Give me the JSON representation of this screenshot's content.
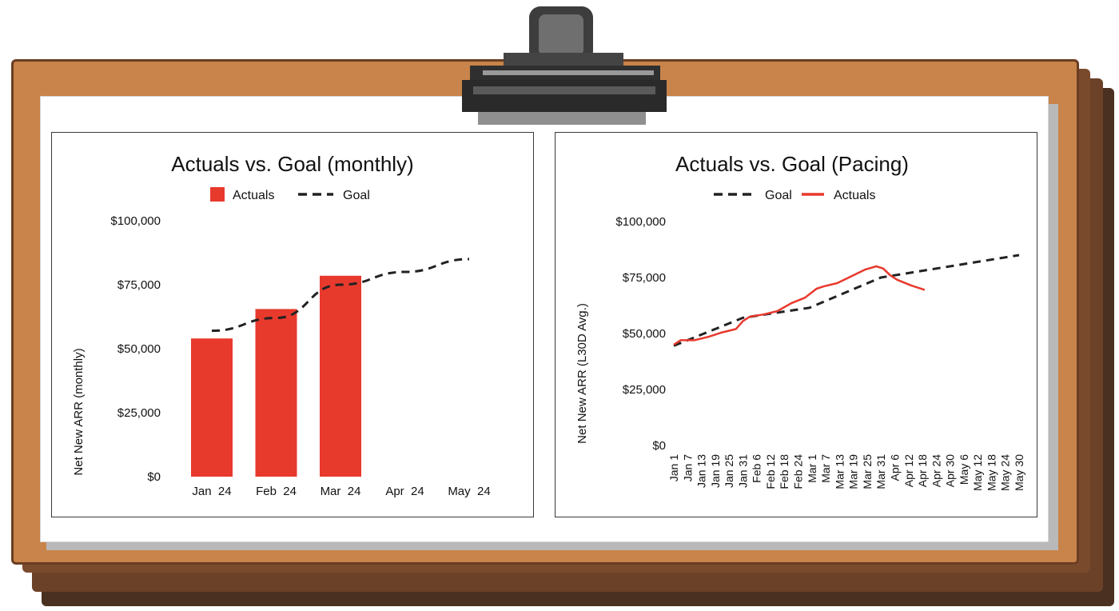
{
  "colors": {
    "actuals": "#e8392d",
    "goal": "#222222",
    "board": "#c8844a",
    "clip": "#4a4a4a"
  },
  "charts": {
    "left": {
      "title": "Actuals vs. Goal (monthly)",
      "ylabel": "Net New ARR (monthly)",
      "legend": [
        "Actuals",
        "Goal"
      ],
      "yticks": [
        "$100,000",
        "$75,000",
        "$50,000",
        "$25,000",
        "$0"
      ]
    },
    "right": {
      "title": "Actuals vs. Goal (Pacing)",
      "ylabel": "Net New ARR (L30D Avg.)",
      "legend": [
        "Goal",
        "Actuals"
      ],
      "yticks": [
        "$100,000",
        "$75,000",
        "$50,000",
        "$25,000",
        "$0"
      ]
    }
  },
  "chart_data": [
    {
      "type": "bar",
      "title": "Actuals vs. Goal (monthly)",
      "xlabel": "",
      "ylabel": "Net New ARR (monthly)",
      "ylim": [
        0,
        100000
      ],
      "categories": [
        "Jan 24",
        "Feb 24",
        "Mar 24",
        "Apr 24",
        "May 24"
      ],
      "series": [
        {
          "name": "Actuals",
          "type": "bar",
          "values": [
            54000,
            65500,
            78500,
            null,
            null
          ]
        },
        {
          "name": "Goal",
          "type": "line",
          "style": "dashed",
          "values": [
            57000,
            62000,
            75000,
            80000,
            85000
          ]
        }
      ],
      "legend": "top-center",
      "grid": false
    },
    {
      "type": "line",
      "title": "Actuals vs. Goal (Pacing)",
      "xlabel": "",
      "ylabel": "Net New ARR (L30D Avg.)",
      "ylim": [
        0,
        100000
      ],
      "xlim": [
        "Jan 1",
        "May 30"
      ],
      "x_ticks": [
        "Jan 1",
        "Jan 7",
        "Jan 13",
        "Jan 19",
        "Jan 25",
        "Jan 31",
        "Feb 6",
        "Feb 12",
        "Feb 18",
        "Feb 24",
        "Mar 1",
        "Mar 7",
        "Mar 13",
        "Mar 19",
        "Mar 25",
        "Mar 31",
        "Apr 6",
        "Apr 12",
        "Apr 18",
        "Apr 24",
        "Apr 30",
        "May 6",
        "May 12",
        "May 18",
        "May 24",
        "May 30"
      ],
      "series": [
        {
          "name": "Goal",
          "style": "dashed",
          "x": [
            "Jan 1",
            "Jan 31",
            "Feb 29",
            "Mar 31",
            "May 30"
          ],
          "values": [
            44500,
            57000,
            61500,
            75000,
            85000
          ]
        },
        {
          "name": "Actuals",
          "x": [
            "Jan 1",
            "Jan 4",
            "Jan 10",
            "Jan 16",
            "Jan 22",
            "Jan 28",
            "Jan 31",
            "Feb 3",
            "Feb 9",
            "Feb 15",
            "Feb 21",
            "Feb 27",
            "Mar 3",
            "Mar 6",
            "Mar 12",
            "Mar 18",
            "Mar 24",
            "Mar 29",
            "Apr 1",
            "Apr 4",
            "Apr 7",
            "Apr 13",
            "Apr 19"
          ],
          "values": [
            45000,
            47000,
            47000,
            48500,
            50500,
            52000,
            55500,
            57500,
            58500,
            60000,
            63500,
            66000,
            70000,
            71000,
            72500,
            75500,
            78500,
            80000,
            79000,
            76000,
            74000,
            71500,
            69500
          ]
        }
      ],
      "legend": "top-center",
      "grid": false
    }
  ]
}
